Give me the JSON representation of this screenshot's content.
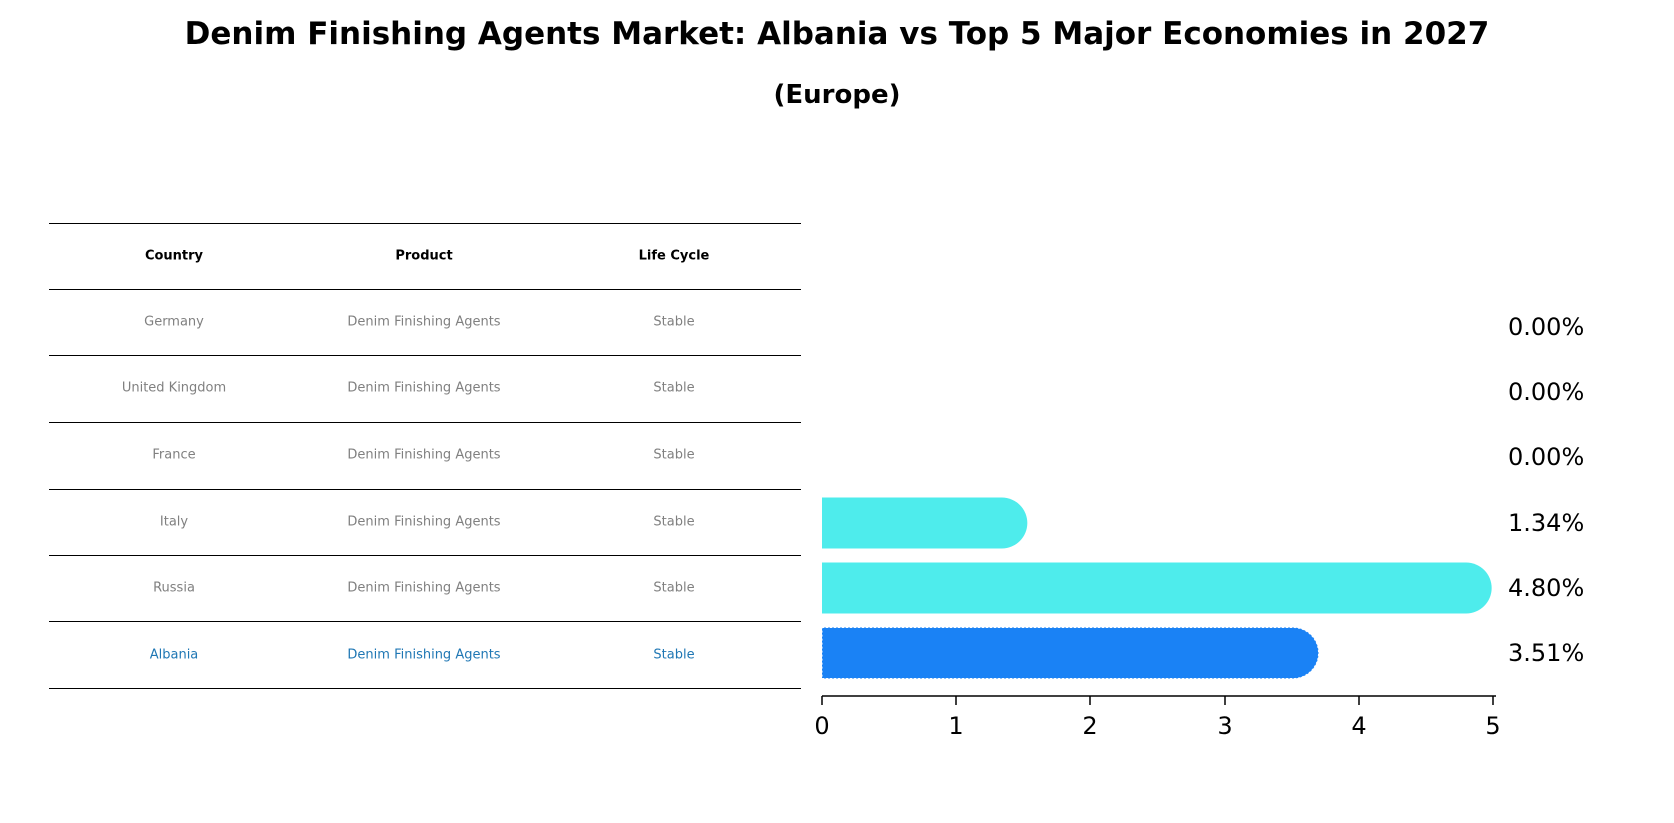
{
  "title": "Denim Finishing Agents Market: Albania vs Top 5 Major Economies in 2027",
  "subtitle": "(Europe)",
  "table": {
    "headers": [
      "Country",
      "Product",
      "Life Cycle"
    ],
    "rows": [
      {
        "country": "Germany",
        "product": "Denim Finishing Agents",
        "life_cycle": "Stable",
        "highlight": false
      },
      {
        "country": "United Kingdom",
        "product": "Denim Finishing Agents",
        "life_cycle": "Stable",
        "highlight": false
      },
      {
        "country": "France",
        "product": "Denim Finishing Agents",
        "life_cycle": "Stable",
        "highlight": false
      },
      {
        "country": "Italy",
        "product": "Denim Finishing Agents",
        "life_cycle": "Stable",
        "highlight": false
      },
      {
        "country": "Russia",
        "product": "Denim Finishing Agents",
        "life_cycle": "Stable",
        "highlight": false
      },
      {
        "country": "Albania",
        "product": "Denim Finishing Agents",
        "life_cycle": "Stable",
        "highlight": true
      }
    ]
  },
  "colors": {
    "bar_default": "#4EECEC",
    "bar_highlight": "#1A82F5",
    "highlight_text": "#1F77B4",
    "muted_text": "#808080"
  },
  "chart_data": {
    "type": "bar",
    "orientation": "horizontal",
    "title": "Denim Finishing Agents Market: Albania vs Top 5 Major Economies in 2027",
    "subtitle": "(Europe)",
    "categories": [
      "Germany",
      "United Kingdom",
      "France",
      "Italy",
      "Russia",
      "Albania"
    ],
    "values": [
      0.0,
      0.0,
      0.0,
      1.34,
      4.8,
      3.51
    ],
    "value_labels": [
      "0.00%",
      "0.00%",
      "0.00%",
      "1.34%",
      "4.80%",
      "3.51%"
    ],
    "highlight": "Albania",
    "xlabel": "",
    "ylabel": "",
    "xlim": [
      0,
      5
    ],
    "xticks": [
      "0",
      "1",
      "2",
      "3",
      "4",
      "5"
    ],
    "grid": false,
    "legend": null
  }
}
